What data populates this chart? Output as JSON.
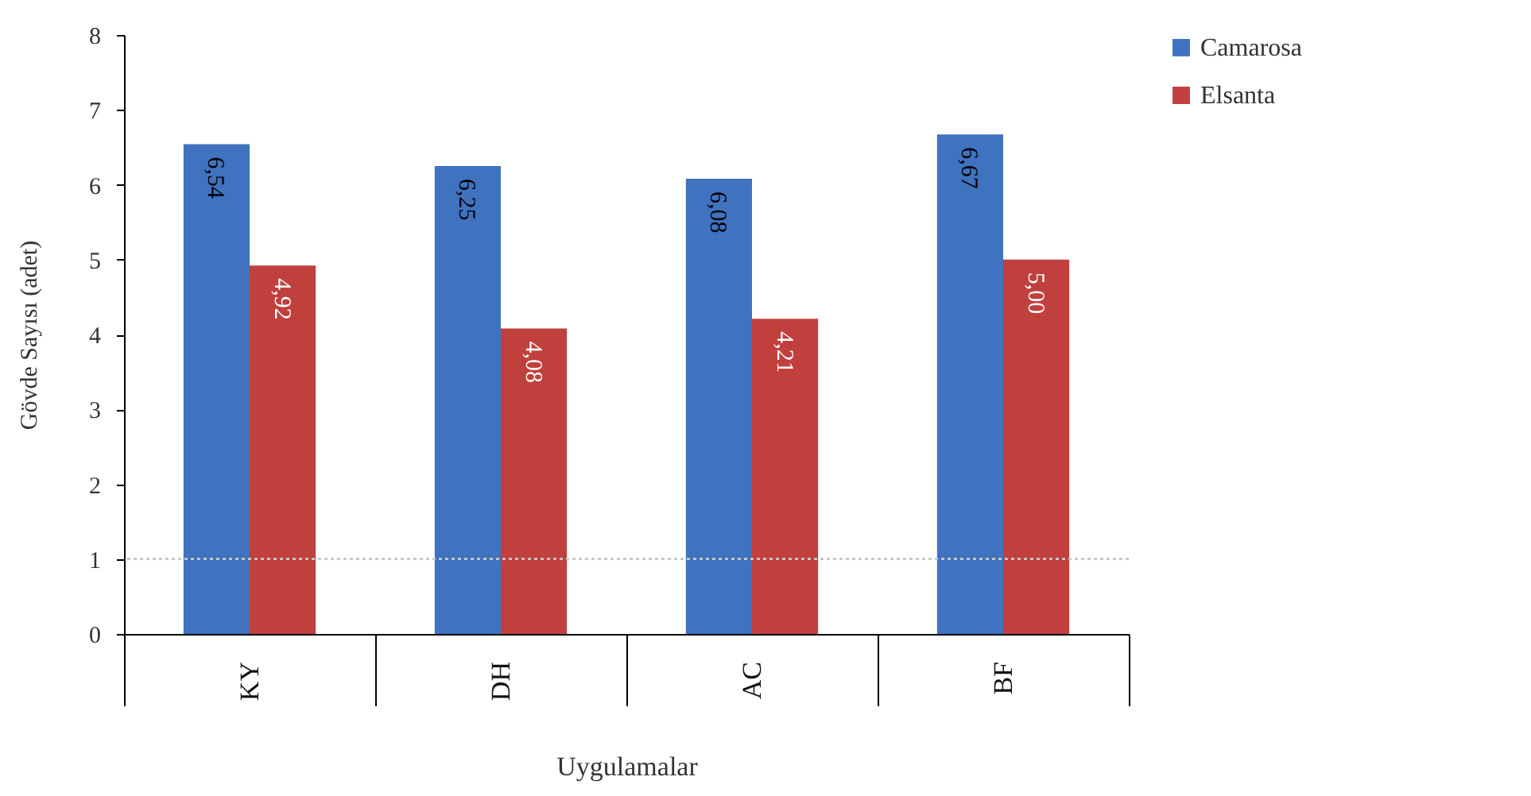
{
  "chart_data": {
    "type": "bar",
    "xlabel": "Uygulamalar",
    "ylabel": "Gövde Sayısı (adet)",
    "categories": [
      "KY",
      "DH",
      "AC",
      "BF"
    ],
    "series": [
      {
        "name": "Camarosa",
        "color": "#3f72bf",
        "values": [
          6.54,
          6.25,
          6.08,
          6.67
        ],
        "value_labels": [
          "6,54",
          "6,25",
          "6,08",
          "6,67"
        ]
      },
      {
        "name": "Elsanta",
        "color": "#c0403e",
        "values": [
          4.92,
          4.08,
          4.21,
          5.0
        ],
        "value_labels": [
          "4,92",
          "4,08",
          "4,21",
          "5,00"
        ]
      }
    ],
    "ylim": [
      0,
      8
    ],
    "yticks": [
      0,
      1,
      2,
      3,
      4,
      5,
      6,
      7,
      8
    ],
    "grid": false,
    "legend": "right",
    "ref_lines": [
      {
        "axis": "y",
        "value": 1,
        "color": "#c8c8c8",
        "line_style": "dotted"
      }
    ]
  }
}
